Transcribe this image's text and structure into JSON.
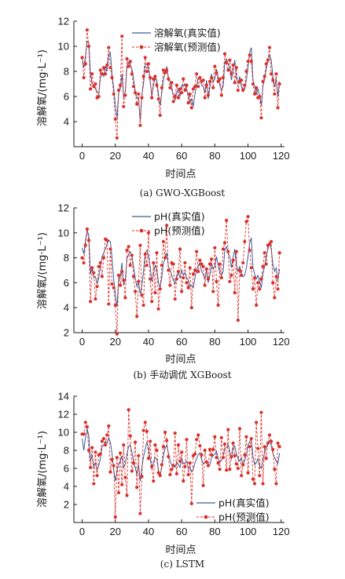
{
  "colors": {
    "actual": "#3a5c99",
    "predicted": "#d9302a",
    "axis": "#1a1a1a"
  },
  "chart_data": [
    {
      "type": "line",
      "caption": "(a) GWO-XGBoost",
      "xlabel": "时间点",
      "ylabel": "溶解氧/(mg·L⁻¹)",
      "xlim": [
        -5,
        122
      ],
      "ylim": [
        2,
        12
      ],
      "xticks": [
        0,
        20,
        40,
        60,
        80,
        100,
        120
      ],
      "yticks": [
        4,
        6,
        8,
        10,
        12
      ],
      "legend_position": "top-center",
      "legend_text_offset": [
        2,
        12
      ],
      "series": [
        {
          "name": "溶解氧(真实值)",
          "style": "solid",
          "values": [
            9.1,
            8.3,
            9.2,
            10.4,
            10.3,
            7.8,
            7.0,
            6.9,
            6.6,
            6.4,
            6.2,
            7.5,
            7.9,
            7.6,
            8.4,
            8.0,
            9.3,
            9.5,
            7.8,
            6.7,
            5.3,
            4.3,
            6.3,
            6.6,
            7.8,
            5.9,
            6.4,
            8.4,
            8.7,
            8.5,
            8.2,
            7.4,
            6.4,
            5.9,
            5.8,
            4.1,
            6.1,
            7.0,
            8.5,
            8.6,
            8.3,
            7.2,
            6.0,
            6.9,
            7.5,
            7.3,
            6.2,
            5.3,
            6.3,
            7.3,
            7.9,
            8.4,
            7.5,
            7.2,
            6.5,
            6.2,
            5.7,
            6.3,
            6.6,
            6.0,
            6.9,
            6.8,
            7.0,
            6.5,
            6.2,
            5.5,
            5.8,
            5.2,
            6.2,
            6.9,
            7.4,
            7.6,
            6.9,
            6.8,
            6.3,
            7.3,
            5.8,
            6.7,
            7.8,
            7.2,
            7.4,
            8.2,
            7.5,
            6.9,
            6.5,
            6.8,
            8.7,
            9.0,
            8.6,
            8.3,
            7.3,
            8.1,
            8.9,
            7.5,
            7.0,
            7.6,
            6.8,
            6.4,
            6.6,
            7.3,
            8.3,
            9.5,
            9.9,
            7.3,
            6.8,
            6.2,
            6.6,
            6.1,
            5.3,
            6.8,
            7.4,
            8.2,
            8.8,
            9.3,
            8.9,
            7.6,
            6.8,
            7.4,
            6.0,
            7.2
          ]
        },
        {
          "name": "溶解氧(预测值)",
          "style": "dashed-markers",
          "values": [
            9.1,
            7.5,
            8.6,
            11.3,
            10.0,
            6.6,
            7.8,
            6.8,
            7.0,
            5.9,
            6.0,
            8.1,
            7.8,
            8.3,
            7.8,
            8.5,
            9.9,
            8.3,
            7.5,
            6.2,
            4.2,
            2.7,
            6.5,
            6.9,
            10.8,
            5.2,
            6.1,
            9.0,
            8.4,
            8.8,
            7.8,
            6.8,
            6.3,
            5.4,
            6.2,
            3.7,
            5.9,
            7.6,
            9.1,
            8.0,
            8.6,
            7.5,
            5.9,
            7.4,
            7.6,
            6.9,
            5.8,
            4.5,
            6.7,
            8.1,
            7.9,
            8.1,
            7.4,
            6.7,
            7.1,
            5.6,
            6.0,
            6.9,
            5.9,
            6.6,
            6.3,
            7.4,
            6.5,
            6.9,
            5.5,
            6.2,
            5.1,
            6.6,
            6.8,
            7.8,
            6.8,
            7.5,
            7.2,
            7.3,
            5.9,
            6.9,
            6.1,
            7.2,
            7.5,
            6.7,
            8.4,
            7.9,
            7.2,
            7.4,
            6.1,
            7.5,
            9.4,
            8.7,
            8.1,
            8.9,
            7.8,
            8.5,
            7.1,
            8.3,
            6.5,
            7.2,
            7.3,
            6.5,
            6.9,
            8.0,
            8.8,
            9.3,
            8.8,
            7.0,
            6.2,
            6.7,
            5.9,
            6.0,
            4.3,
            7.2,
            7.6,
            8.6,
            8.9,
            9.9,
            7.8,
            7.3,
            6.2,
            7.8,
            5.1,
            7.0
          ]
        }
      ]
    },
    {
      "type": "line",
      "caption": "(b) 手动调优 XGBoost",
      "xlabel": "时间点",
      "ylabel": "溶解氧/(mg·L⁻¹)",
      "xlim": [
        -5,
        122
      ],
      "ylim": [
        2,
        12
      ],
      "xticks": [
        0,
        20,
        40,
        60,
        80,
        100,
        120
      ],
      "yticks": [
        2,
        4,
        6,
        8,
        10,
        12
      ],
      "legend_position": "top-center",
      "series": [
        {
          "name": "pH(真实值)",
          "style": "solid",
          "values": [
            8.8,
            8.3,
            9.4,
            10.2,
            9.8,
            6.7,
            7.3,
            6.4,
            6.5,
            5.9,
            6.4,
            7.3,
            8.1,
            8.4,
            8.7,
            9.1,
            9.4,
            9.3,
            8.0,
            6.3,
            5.1,
            4.1,
            6.2,
            6.5,
            7.6,
            5.8,
            6.2,
            7.9,
            8.3,
            8.5,
            8.1,
            7.3,
            6.4,
            5.7,
            6.1,
            5.1,
            5.8,
            6.9,
            8.4,
            8.6,
            8.1,
            7.3,
            6.1,
            6.7,
            7.4,
            7.1,
            6.0,
            5.6,
            6.4,
            7.6,
            7.9,
            8.4,
            7.3,
            7.0,
            6.6,
            6.2,
            5.9,
            6.6,
            6.8,
            6.4,
            7.0,
            6.6,
            6.8,
            6.4,
            6.2,
            5.7,
            5.8,
            5.6,
            6.4,
            7.0,
            7.4,
            7.6,
            6.9,
            6.7,
            6.3,
            7.1,
            6.0,
            6.6,
            7.6,
            7.1,
            7.3,
            8.1,
            7.4,
            6.8,
            6.6,
            6.9,
            8.6,
            8.9,
            8.4,
            8.1,
            7.2,
            8.0,
            8.7,
            7.4,
            6.9,
            7.3,
            6.8,
            6.5,
            6.6,
            7.2,
            8.1,
            9.2,
            9.6,
            7.2,
            6.7,
            6.3,
            6.6,
            6.1,
            5.6,
            6.7,
            7.3,
            8.1,
            8.7,
            9.2,
            8.7,
            7.5,
            6.9,
            7.2,
            6.2,
            7.1
          ]
        },
        {
          "name": "pH(预测值)",
          "style": "dashed-markers",
          "values": [
            8.0,
            7.6,
            9.0,
            10.3,
            9.4,
            4.5,
            7.2,
            6.8,
            4.7,
            5.7,
            7.3,
            7.6,
            6.5,
            8.0,
            9.5,
            9.4,
            4.3,
            8.7,
            5.9,
            5.6,
            4.2,
            1.9,
            6.6,
            5.8,
            6.9,
            6.2,
            4.8,
            8.6,
            8.9,
            7.4,
            8.2,
            6.5,
            5.3,
            3.3,
            6.1,
            9.0,
            5.0,
            4.2,
            8.3,
            7.4,
            10.0,
            6.3,
            4.5,
            7.6,
            5.2,
            8.4,
            3.9,
            5.5,
            7.4,
            9.3,
            8.0,
            10.6,
            7.0,
            5.8,
            7.6,
            7.5,
            4.7,
            6.3,
            6.9,
            8.7,
            5.3,
            6.4,
            7.6,
            6.0,
            5.6,
            7.2,
            4.0,
            6.7,
            7.0,
            8.5,
            6.9,
            7.8,
            7.5,
            7.3,
            5.8,
            7.1,
            6.3,
            7.5,
            7.9,
            5.3,
            8.8,
            6.1,
            4.2,
            7.5,
            6.4,
            8.7,
            9.2,
            11.0,
            8.5,
            6.1,
            6.6,
            7.8,
            5.2,
            8.5,
            3.0,
            7.0,
            6.6,
            7.6,
            9.3,
            10.9,
            11.3,
            8.6,
            7.2,
            5.5,
            6.4,
            4.2,
            6.0,
            5.5,
            6.3,
            7.3,
            8.4,
            7.5,
            9.0,
            9.1,
            9.3,
            6.0,
            4.8,
            6.5,
            5.5,
            8.4
          ]
        }
      ]
    },
    {
      "type": "line",
      "caption": "(c) LSTM",
      "xlabel": "时间点",
      "ylabel": "溶解氧/(mg·L⁻¹)",
      "xlim": [
        -5,
        122
      ],
      "ylim": [
        0,
        14
      ],
      "xticks": [
        0,
        20,
        40,
        60,
        80,
        100,
        120
      ],
      "yticks": [
        2,
        4,
        6,
        8,
        10,
        12,
        14
      ],
      "legend_position": "bottom-right",
      "series": [
        {
          "name": "pH(真实值)",
          "style": "solid",
          "values": [
            9.3,
            8.0,
            9.4,
            10.4,
            9.6,
            6.8,
            7.5,
            6.2,
            6.6,
            5.8,
            6.3,
            7.1,
            8.4,
            8.6,
            9.0,
            8.8,
            9.4,
            8.9,
            7.6,
            5.9,
            4.6,
            5.7,
            6.5,
            6.8,
            7.4,
            6.1,
            6.5,
            7.6,
            8.4,
            8.6,
            7.8,
            6.6,
            6.1,
            5.3,
            6.4,
            4.6,
            6.1,
            7.3,
            8.1,
            8.9,
            8.3,
            7.1,
            5.9,
            6.7,
            7.2,
            7.0,
            5.8,
            5.2,
            6.1,
            7.4,
            8.2,
            8.6,
            7.7,
            6.9,
            6.3,
            6.5,
            6.1,
            6.7,
            6.4,
            6.1,
            7.2,
            6.5,
            6.6,
            6.8,
            6.0,
            6.2,
            5.6,
            5.9,
            6.6,
            7.1,
            7.5,
            7.7,
            7.0,
            6.5,
            6.7,
            6.9,
            6.2,
            6.4,
            7.2,
            7.4,
            7.6,
            7.9,
            7.1,
            6.7,
            6.9,
            7.4,
            8.2,
            8.3,
            8.6,
            7.9,
            7.0,
            8.3,
            8.5,
            7.6,
            7.1,
            6.8,
            7.2,
            6.2,
            6.9,
            7.5,
            8.5,
            9.0,
            9.3,
            7.3,
            6.4,
            6.6,
            7.1,
            6.3,
            6.0,
            6.9,
            7.8,
            8.3,
            8.8,
            9.1,
            8.5,
            7.7,
            7.2,
            6.8,
            6.5,
            7.7
          ]
        },
        {
          "name": "pH(预测值)",
          "style": "dashed-markers",
          "values": [
            9.8,
            9.8,
            11.1,
            10.6,
            8.0,
            6.1,
            8.3,
            4.3,
            7.8,
            5.2,
            7.5,
            7.6,
            9.0,
            9.3,
            8.6,
            9.7,
            10.7,
            5.6,
            7.0,
            6.3,
            0.6,
            7.2,
            3.3,
            7.7,
            4.2,
            8.6,
            5.0,
            3.0,
            12.5,
            9.6,
            5.7,
            6.6,
            8.9,
            3.9,
            7.4,
            1.0,
            5.1,
            10.2,
            11.1,
            10.1,
            7.1,
            9.0,
            6.2,
            4.6,
            8.6,
            8.0,
            5.5,
            5.2,
            6.4,
            8.4,
            10.0,
            9.1,
            7.3,
            5.3,
            5.9,
            6.3,
            9.9,
            5.4,
            8.6,
            6.8,
            7.8,
            4.6,
            6.2,
            9.2,
            5.3,
            6.6,
            2.1,
            7.4,
            7.6,
            9.2,
            9.7,
            8.5,
            7.5,
            4.1,
            8.0,
            6.7,
            6.3,
            8.1,
            7.5,
            8.1,
            9.5,
            7.2,
            6.6,
            5.9,
            9.4,
            7.2,
            8.7,
            5.8,
            10.3,
            5.9,
            7.3,
            8.8,
            7.4,
            6.5,
            6.0,
            10.4,
            5.2,
            6.4,
            7.5,
            9.5,
            5.5,
            8.4,
            9.3,
            4.8,
            4.3,
            11.1,
            8.2,
            5.2,
            12.2,
            4.3,
            8.4,
            7.1,
            8.8,
            9.7,
            9.0,
            8.1,
            5.9,
            4.3,
            8.8,
            8.4
          ]
        }
      ]
    }
  ]
}
